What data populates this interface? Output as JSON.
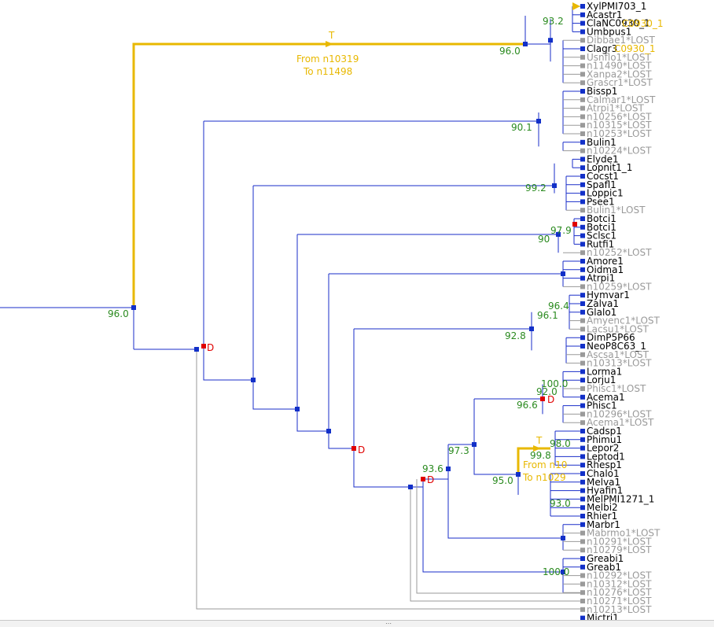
{
  "colors": {
    "branch": "#1a2ec9",
    "lost": "#9a9a9a",
    "node": "#1230c8",
    "dup": "#e00000",
    "transfer": "#e8b800",
    "support": "#2a8a1f",
    "text": "#000000"
  },
  "leaves": [
    {
      "label": "XylPMI703_1",
      "lost": false
    },
    {
      "label": "Acastr1",
      "lost": false
    },
    {
      "label": "ClaNC0930_1",
      "lost": false
    },
    {
      "label": "Umbpus1",
      "lost": false
    },
    {
      "label": "Dibbae1*LOST",
      "lost": true
    },
    {
      "label": "Clagr3",
      "lost": false
    },
    {
      "label": "Usnflo1*LOST",
      "lost": true
    },
    {
      "label": "n11490*LOST",
      "lost": true
    },
    {
      "label": "Xanpa2*LOST",
      "lost": true
    },
    {
      "label": "Grascr1*LOST",
      "lost": true
    },
    {
      "label": "Bissp1",
      "lost": false
    },
    {
      "label": "Calmar1*LOST",
      "lost": true
    },
    {
      "label": "Atrpi1*LOST",
      "lost": true
    },
    {
      "label": "n10256*LOST",
      "lost": true
    },
    {
      "label": "n10315*LOST",
      "lost": true
    },
    {
      "label": "n10253*LOST",
      "lost": true
    },
    {
      "label": "Bulin1",
      "lost": false
    },
    {
      "label": "n10224*LOST",
      "lost": true
    },
    {
      "label": "Elyde1",
      "lost": false
    },
    {
      "label": "Lopnit1_1",
      "lost": false
    },
    {
      "label": "Cocst1",
      "lost": false
    },
    {
      "label": "Spafl1",
      "lost": false
    },
    {
      "label": "Loppic1",
      "lost": false
    },
    {
      "label": "Psee1",
      "lost": false
    },
    {
      "label": "Bulin1*LOST",
      "lost": true
    },
    {
      "label": "Botci1",
      "lost": false
    },
    {
      "label": "Botci1",
      "lost": false
    },
    {
      "label": "Sclsc1",
      "lost": false
    },
    {
      "label": "Rutfi1",
      "lost": false
    },
    {
      "label": "n10252*LOST",
      "lost": true
    },
    {
      "label": "Amore1",
      "lost": false
    },
    {
      "label": "Oidma1",
      "lost": false
    },
    {
      "label": "Atrpi1",
      "lost": false
    },
    {
      "label": "n10259*LOST",
      "lost": true
    },
    {
      "label": "Hymvar1",
      "lost": false
    },
    {
      "label": "Zalva1",
      "lost": false
    },
    {
      "label": "Glalo1",
      "lost": false
    },
    {
      "label": "Amyenc1*LOST",
      "lost": true
    },
    {
      "label": "Lacsu1*LOST",
      "lost": true
    },
    {
      "label": "DimP5P66",
      "lost": false
    },
    {
      "label": "NeoP8C63_1",
      "lost": false
    },
    {
      "label": "Ascsa1*LOST",
      "lost": true
    },
    {
      "label": "n10313*LOST",
      "lost": true
    },
    {
      "label": "Lorma1",
      "lost": false
    },
    {
      "label": "Lorju1",
      "lost": false
    },
    {
      "label": "Phisc1*LOST",
      "lost": true
    },
    {
      "label": "Acema1",
      "lost": false
    },
    {
      "label": "Phisc1",
      "lost": false
    },
    {
      "label": "n10296*LOST",
      "lost": true
    },
    {
      "label": "Acema1*LOST",
      "lost": true
    },
    {
      "label": "Cadsp1",
      "lost": false
    },
    {
      "label": "Phimu1",
      "lost": false
    },
    {
      "label": "Lepor2",
      "lost": false
    },
    {
      "label": "Leptod1",
      "lost": false
    },
    {
      "label": "Rhesp1",
      "lost": false
    },
    {
      "label": "Chalo1",
      "lost": false
    },
    {
      "label": "Melva1",
      "lost": false
    },
    {
      "label": "Hyafin1",
      "lost": false
    },
    {
      "label": "MelPMI1271_1",
      "lost": false
    },
    {
      "label": "Melbi2",
      "lost": false
    },
    {
      "label": "Rhier1",
      "lost": false
    },
    {
      "label": "Marbr1",
      "lost": false
    },
    {
      "label": "Mabrmo1*LOST",
      "lost": true
    },
    {
      "label": "n10291*LOST",
      "lost": true
    },
    {
      "label": "n10279*LOST",
      "lost": true
    },
    {
      "label": "Greabi1",
      "lost": false
    },
    {
      "label": "Greab1",
      "lost": false
    },
    {
      "label": "n10292*LOST",
      "lost": true
    },
    {
      "label": "n10312*LOST",
      "lost": true
    },
    {
      "label": "n10276*LOST",
      "lost": true
    },
    {
      "label": "n10271*LOST",
      "lost": true
    },
    {
      "label": "n10213*LOST",
      "lost": true
    },
    {
      "label": "Mictri1",
      "lost": false
    }
  ],
  "supports": [
    "96.0",
    "93.2",
    "96.0",
    "90.1",
    "99.2",
    "90",
    "97.9",
    "96.4",
    "96.1",
    "92.8",
    "100.0",
    "92.0",
    "96.6",
    "97.3",
    "93.6",
    "98.0",
    "99.8",
    "95.0",
    "93.0",
    "100.0"
  ],
  "dup_label": "D",
  "transfers": [
    {
      "tag": "T",
      "from": "From n10319",
      "to": "To n11498"
    },
    {
      "tag": "T",
      "from": "From n10",
      "to": "To n1029"
    }
  ],
  "overlapping_labels": [
    "C0930_1",
    "C0930_1"
  ]
}
